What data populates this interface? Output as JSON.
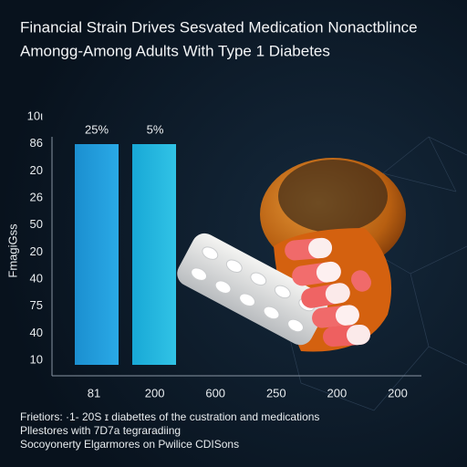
{
  "header": {
    "title": [
      "Financial Strain Drives Sesvated Medication Nonactblince",
      "Amongg-Among Adults With Type 1 Diabetes"
    ]
  },
  "axis": {
    "y_label": "FmagiGss",
    "y_tick_labels": [
      "10ι",
      "86",
      "20",
      "26",
      "50",
      "20",
      "40",
      "75",
      "40",
      "10"
    ],
    "x_tick_labels": [
      "81",
      "200",
      "600",
      "250",
      "200",
      "200"
    ]
  },
  "bars": [
    {
      "label": "25%"
    },
    {
      "label": "5%"
    }
  ],
  "footer": {
    "lines": [
      "Frietiors: ·1- 20S ɪ diabettes of the custration and medications",
      "Pllestores with 7D7a tegraradiing",
      "Socoyonerty Elgarmores on Pwilice CDISons"
    ]
  }
}
